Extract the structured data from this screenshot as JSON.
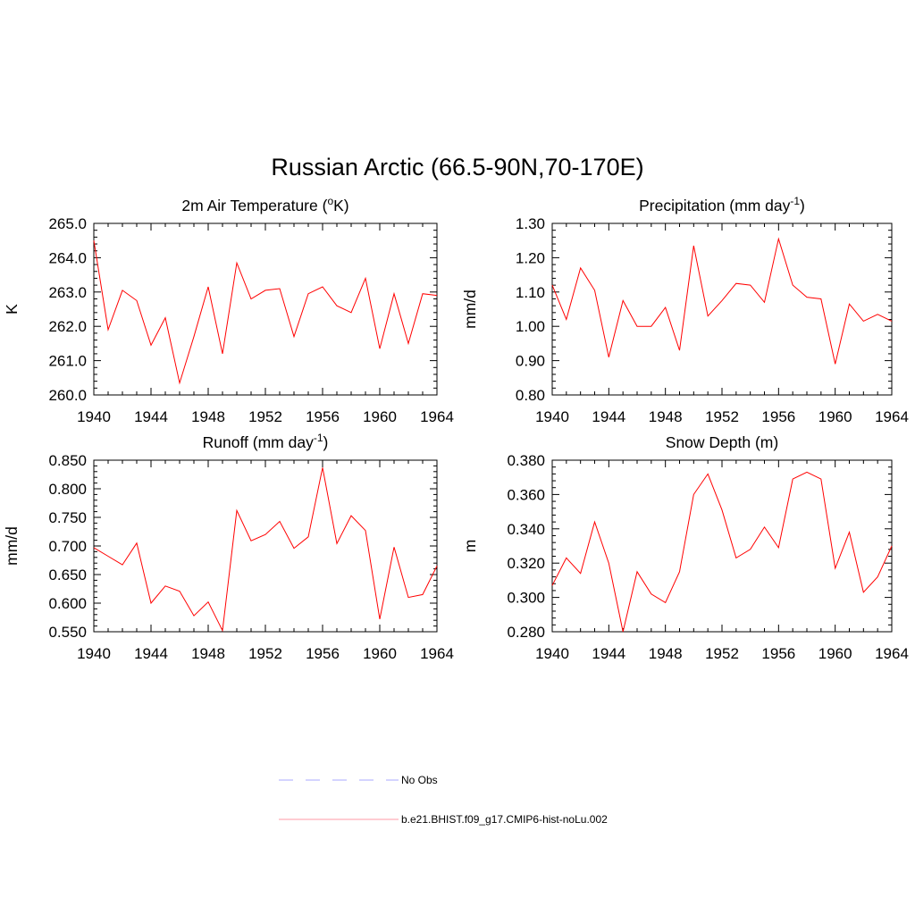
{
  "figure": {
    "title": "Russian Arctic (66.5-90N,70-170E)"
  },
  "legend": {
    "items": [
      {
        "label": "No Obs",
        "color": "#a9a9ff",
        "style": "dashed"
      },
      {
        "label": "b.e21.BHIST.f09_g17.CMIP6-hist-noLu.002",
        "color": "#ff9aa6",
        "style": "solid"
      }
    ]
  },
  "chart_data": [
    {
      "type": "line",
      "title_main": "2m Air Temperature (",
      "title_sup": "o",
      "title_tail": "K)",
      "ylabel": "K",
      "xlim": [
        1940,
        1964
      ],
      "ylim": [
        260.0,
        265.0
      ],
      "xticks": [
        1940,
        1944,
        1948,
        1952,
        1956,
        1960,
        1964
      ],
      "yticks": [
        "260.0",
        "261.0",
        "262.0",
        "263.0",
        "264.0",
        "265.0"
      ],
      "series": [
        {
          "color": "#ff0000",
          "x": [
            1940,
            1941,
            1942,
            1943,
            1944,
            1945,
            1946,
            1947,
            1948,
            1949,
            1950,
            1951,
            1952,
            1953,
            1954,
            1955,
            1956,
            1957,
            1958,
            1959,
            1960,
            1961,
            1962,
            1963,
            1964
          ],
          "values": [
            264.5,
            261.9,
            263.05,
            262.75,
            261.45,
            262.25,
            260.35,
            261.7,
            263.15,
            261.2,
            263.85,
            262.8,
            263.05,
            263.1,
            261.7,
            262.95,
            263.15,
            262.6,
            262.4,
            263.4,
            261.35,
            262.95,
            261.5,
            262.95,
            262.9
          ]
        }
      ]
    },
    {
      "type": "line",
      "title_main": "Precipitation (mm day",
      "title_sup": "-1",
      "title_tail": ")",
      "ylabel": "mm/d",
      "xlim": [
        1940,
        1964
      ],
      "ylim": [
        0.8,
        1.3
      ],
      "xticks": [
        1940,
        1944,
        1948,
        1952,
        1956,
        1960,
        1964
      ],
      "yticks": [
        "0.80",
        "0.90",
        "1.00",
        "1.10",
        "1.20",
        "1.30"
      ],
      "series": [
        {
          "color": "#ff0000",
          "x": [
            1940,
            1941,
            1942,
            1943,
            1944,
            1945,
            1946,
            1947,
            1948,
            1949,
            1950,
            1951,
            1952,
            1953,
            1954,
            1955,
            1956,
            1957,
            1958,
            1959,
            1960,
            1961,
            1962,
            1963,
            1964
          ],
          "values": [
            1.12,
            1.02,
            1.17,
            1.105,
            0.91,
            1.075,
            1.0,
            1.0,
            1.055,
            0.93,
            1.235,
            1.03,
            1.075,
            1.125,
            1.12,
            1.07,
            1.255,
            1.12,
            1.085,
            1.08,
            0.89,
            1.065,
            1.015,
            1.035,
            1.015
          ]
        }
      ]
    },
    {
      "type": "line",
      "title_main": "Runoff (mm day",
      "title_sup": "-1",
      "title_tail": ")",
      "ylabel": "mm/d",
      "xlim": [
        1940,
        1964
      ],
      "ylim": [
        0.55,
        0.85
      ],
      "xticks": [
        1940,
        1944,
        1948,
        1952,
        1956,
        1960,
        1964
      ],
      "yticks": [
        "0.550",
        "0.600",
        "0.650",
        "0.700",
        "0.750",
        "0.800",
        "0.850"
      ],
      "series": [
        {
          "color": "#ff0000",
          "x": [
            1940,
            1941,
            1942,
            1943,
            1944,
            1945,
            1946,
            1947,
            1948,
            1949,
            1950,
            1951,
            1952,
            1953,
            1954,
            1955,
            1956,
            1957,
            1958,
            1959,
            1960,
            1961,
            1962,
            1963,
            1964
          ],
          "values": [
            0.697,
            0.682,
            0.667,
            0.705,
            0.6,
            0.63,
            0.621,
            0.578,
            0.602,
            0.552,
            0.762,
            0.709,
            0.72,
            0.743,
            0.696,
            0.716,
            0.837,
            0.704,
            0.753,
            0.727,
            0.572,
            0.698,
            0.61,
            0.615,
            0.665
          ]
        }
      ]
    },
    {
      "type": "line",
      "title_main": "Snow Depth (m)",
      "title_sup": "",
      "title_tail": "",
      "ylabel": "m",
      "xlim": [
        1940,
        1964
      ],
      "ylim": [
        0.28,
        0.38
      ],
      "xticks": [
        1940,
        1944,
        1948,
        1952,
        1956,
        1960,
        1964
      ],
      "yticks": [
        "0.280",
        "0.300",
        "0.320",
        "0.340",
        "0.360",
        "0.380"
      ],
      "series": [
        {
          "color": "#ff0000",
          "x": [
            1940,
            1941,
            1942,
            1943,
            1944,
            1945,
            1946,
            1947,
            1948,
            1949,
            1950,
            1951,
            1952,
            1953,
            1954,
            1955,
            1956,
            1957,
            1958,
            1959,
            1960,
            1961,
            1962,
            1963,
            1964
          ],
          "values": [
            0.307,
            0.323,
            0.314,
            0.344,
            0.32,
            0.28,
            0.315,
            0.302,
            0.297,
            0.315,
            0.36,
            0.372,
            0.351,
            0.323,
            0.328,
            0.341,
            0.329,
            0.369,
            0.373,
            0.369,
            0.317,
            0.338,
            0.303,
            0.312,
            0.33
          ]
        }
      ]
    }
  ]
}
